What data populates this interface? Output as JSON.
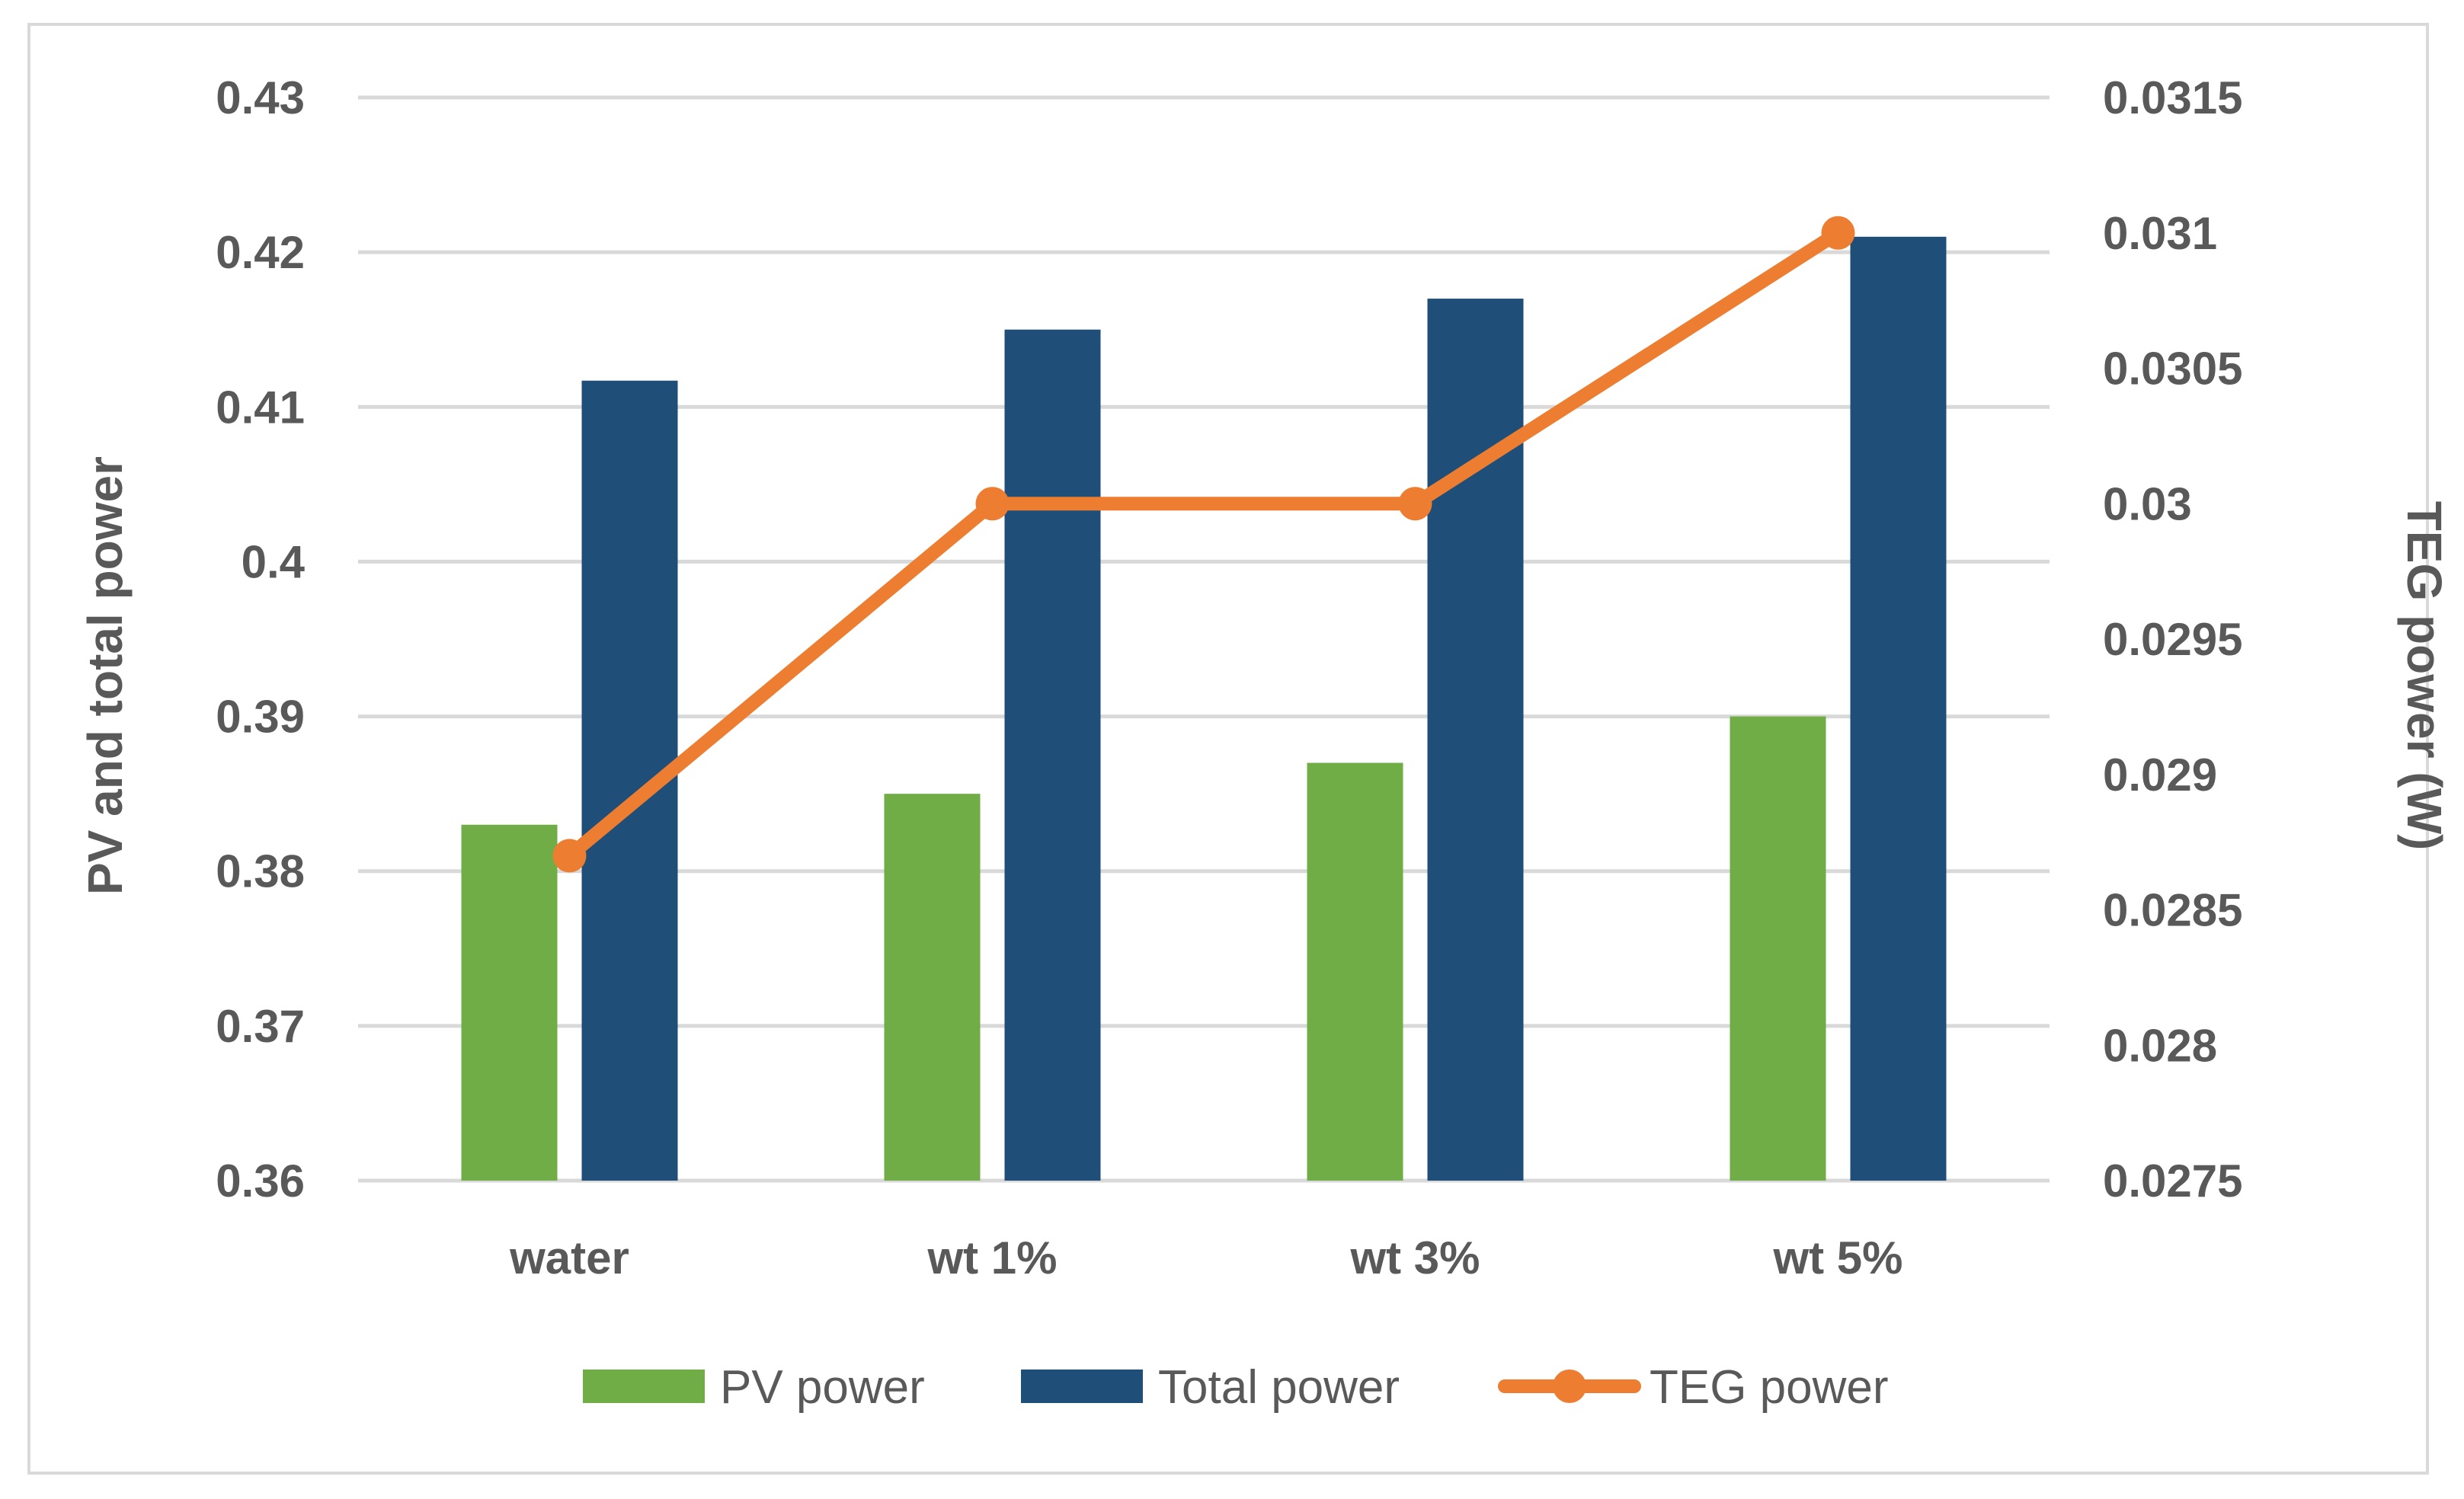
{
  "chart_data": {
    "type": "bar+line",
    "categories": [
      "water",
      "wt 1%",
      "wt 3%",
      "wt 5%"
    ],
    "series": [
      {
        "name": "PV power",
        "kind": "bar",
        "axis": "left",
        "color": "#70ad47",
        "values": [
          0.383,
          0.385,
          0.387,
          0.39
        ]
      },
      {
        "name": "Total power",
        "kind": "bar",
        "axis": "left",
        "color": "#1f4e79",
        "values": [
          0.4117,
          0.415,
          0.417,
          0.421
        ]
      },
      {
        "name": "TEG power",
        "kind": "line",
        "axis": "right",
        "color": "#ed7d31",
        "values": [
          0.0287,
          0.03,
          0.03,
          0.031
        ]
      }
    ],
    "left_axis": {
      "title": "PV and total power",
      "ylim": [
        0.36,
        0.43
      ],
      "ticks": [
        0.36,
        0.37,
        0.38,
        0.39,
        0.4,
        0.41,
        0.42,
        0.43
      ],
      "tick_labels": [
        "0.36",
        "0.37",
        "0.38",
        "0.39",
        "0.4",
        "0.41",
        "0.42",
        "0.43"
      ]
    },
    "right_axis": {
      "title": "TEG power (W)",
      "ylim": [
        0.0275,
        0.0315
      ],
      "ticks": [
        0.0275,
        0.028,
        0.0285,
        0.029,
        0.0295,
        0.03,
        0.0305,
        0.031,
        0.0315
      ],
      "tick_labels": [
        "0.0275",
        "0.028",
        "0.0285",
        "0.029",
        "0.0295",
        "0.03",
        "0.0305",
        "0.031",
        "0.0315"
      ]
    },
    "legend_position": "bottom",
    "grid": true,
    "gridline_color": "#d9d9d9",
    "axis_text_color": "#595959"
  }
}
